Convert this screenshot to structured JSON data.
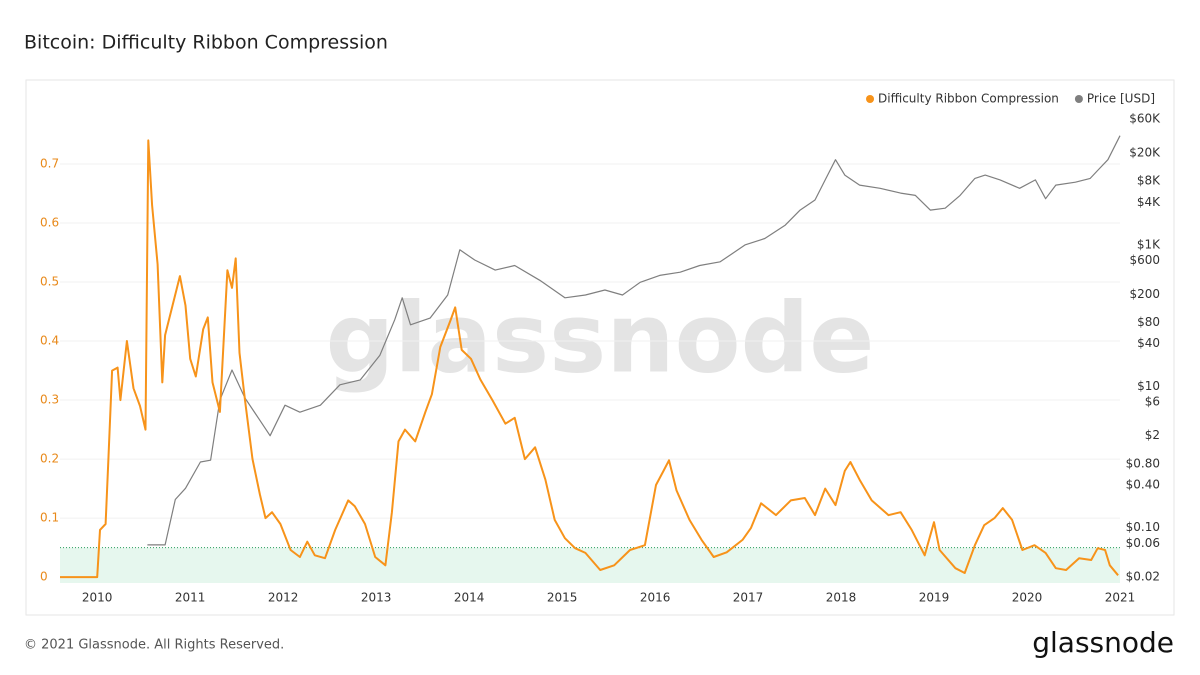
{
  "chart_data": {
    "type": "line",
    "title": "Bitcoin: Difficulty Ribbon Compression",
    "watermark": "glassnode",
    "footer": "© 2021 Glassnode. All Rights Reserved.",
    "brand": "glassnode",
    "legend": "top-right",
    "grid": true,
    "threshold": 0.05,
    "threshold_color": "#e6f7ee",
    "xlim": [
      2009.6,
      2021.0
    ],
    "xticks": [
      2010,
      2011,
      2012,
      2013,
      2014,
      2015,
      2016,
      2017,
      2018,
      2019,
      2020,
      2021
    ],
    "ylim": [
      -0.01,
      0.8
    ],
    "yticks": [
      0,
      0.1,
      0.2,
      0.3,
      0.4,
      0.5,
      0.6,
      0.7
    ],
    "y2log": true,
    "y2lim": [
      0.0165,
      95000
    ],
    "y2ticks": [
      {
        "value": 0.02,
        "label": "$0.02"
      },
      {
        "value": 0.06,
        "label": "$0.06"
      },
      {
        "value": 0.1,
        "label": "$0.10"
      },
      {
        "value": 0.4,
        "label": "$0.40"
      },
      {
        "value": 0.8,
        "label": "$0.80"
      },
      {
        "value": 2,
        "label": "$2"
      },
      {
        "value": 6,
        "label": "$6"
      },
      {
        "value": 10,
        "label": "$10"
      },
      {
        "value": 40,
        "label": "$40"
      },
      {
        "value": 80,
        "label": "$80"
      },
      {
        "value": 200,
        "label": "$200"
      },
      {
        "value": 600,
        "label": "$600"
      },
      {
        "value": 1000,
        "label": "$1K"
      },
      {
        "value": 4000,
        "label": "$4K"
      },
      {
        "value": 8000,
        "label": "$8K"
      },
      {
        "value": 20000,
        "label": "$20K"
      },
      {
        "value": 60000,
        "label": "$60K"
      }
    ],
    "series": [
      {
        "name": "Difficulty Ribbon Compression",
        "color": "#f7931a",
        "axis": "y",
        "x": [
          2009.6,
          2010.0,
          2010.03,
          2010.09,
          2010.12,
          2010.16,
          2010.22,
          2010.25,
          2010.32,
          2010.39,
          2010.46,
          2010.52,
          2010.55,
          2010.59,
          2010.65,
          2010.7,
          2010.73,
          2010.81,
          2010.89,
          2010.95,
          2011.0,
          2011.06,
          2011.14,
          2011.19,
          2011.24,
          2011.32,
          2011.4,
          2011.45,
          2011.49,
          2011.53,
          2011.59,
          2011.67,
          2011.75,
          2011.81,
          2011.88,
          2011.97,
          2012.08,
          2012.18,
          2012.26,
          2012.34,
          2012.45,
          2012.56,
          2012.7,
          2012.77,
          2012.88,
          2012.99,
          2013.1,
          2013.17,
          2013.24,
          2013.31,
          2013.42,
          2013.53,
          2013.6,
          2013.69,
          2013.8,
          2013.85,
          2013.92,
          2014.02,
          2014.12,
          2014.25,
          2014.39,
          2014.49,
          2014.6,
          2014.71,
          2014.82,
          2014.92,
          2015.03,
          2015.14,
          2015.25,
          2015.41,
          2015.56,
          2015.73,
          2015.89,
          2016.01,
          2016.09,
          2016.15,
          2016.23,
          2016.37,
          2016.5,
          2016.63,
          2016.77,
          2016.94,
          2017.03,
          2017.14,
          2017.3,
          2017.46,
          2017.61,
          2017.72,
          2017.83,
          2017.94,
          2018.04,
          2018.1,
          2018.2,
          2018.33,
          2018.51,
          2018.64,
          2018.76,
          2018.9,
          2019.0,
          2019.06,
          2019.23,
          2019.33,
          2019.44,
          2019.54,
          2019.65,
          2019.74,
          2019.84,
          2019.95,
          2020.08,
          2020.2,
          2020.31,
          2020.42,
          2020.56,
          2020.69,
          2020.76,
          2020.84,
          2020.89,
          2020.98
        ],
        "values": [
          0,
          0,
          0.08,
          0.09,
          0.2,
          0.35,
          0.355,
          0.3,
          0.4,
          0.32,
          0.29,
          0.25,
          0.74,
          0.63,
          0.53,
          0.33,
          0.41,
          0.46,
          0.51,
          0.46,
          0.37,
          0.34,
          0.42,
          0.44,
          0.33,
          0.28,
          0.52,
          0.49,
          0.54,
          0.38,
          0.3,
          0.2,
          0.14,
          0.1,
          0.11,
          0.09,
          0.046,
          0.034,
          0.06,
          0.037,
          0.032,
          0.08,
          0.13,
          0.12,
          0.09,
          0.034,
          0.02,
          0.11,
          0.23,
          0.25,
          0.23,
          0.28,
          0.31,
          0.39,
          0.435,
          0.457,
          0.385,
          0.37,
          0.335,
          0.3,
          0.26,
          0.27,
          0.2,
          0.22,
          0.165,
          0.097,
          0.066,
          0.049,
          0.041,
          0.012,
          0.02,
          0.046,
          0.054,
          0.156,
          0.18,
          0.198,
          0.147,
          0.097,
          0.063,
          0.034,
          0.042,
          0.063,
          0.083,
          0.125,
          0.105,
          0.13,
          0.134,
          0.105,
          0.15,
          0.122,
          0.18,
          0.195,
          0.165,
          0.13,
          0.105,
          0.11,
          0.08,
          0.037,
          0.093,
          0.046,
          0.015,
          0.007,
          0.054,
          0.088,
          0.1,
          0.117,
          0.097,
          0.046,
          0.054,
          0.041,
          0.015,
          0.012,
          0.032,
          0.029,
          0.049,
          0.046,
          0.02,
          0.003
        ]
      },
      {
        "name": "Price [USD]",
        "color": "#7f7f7f",
        "axis": "y2",
        "x": [
          2010.54,
          2010.73,
          2010.84,
          2010.95,
          2011.11,
          2011.22,
          2011.32,
          2011.45,
          2011.59,
          2011.75,
          2011.86,
          2012.02,
          2012.18,
          2012.4,
          2012.61,
          2012.83,
          2013.04,
          2013.2,
          2013.28,
          2013.37,
          2013.58,
          2013.77,
          2013.9,
          2014.06,
          2014.28,
          2014.49,
          2014.76,
          2015.03,
          2015.25,
          2015.46,
          2015.65,
          2015.84,
          2016.05,
          2016.27,
          2016.48,
          2016.7,
          2016.97,
          2017.18,
          2017.4,
          2017.56,
          2017.72,
          2017.83,
          2017.94,
          2018.04,
          2018.2,
          2018.42,
          2018.64,
          2018.8,
          2018.96,
          2019.12,
          2019.28,
          2019.44,
          2019.55,
          2019.71,
          2019.92,
          2020.09,
          2020.2,
          2020.31,
          2020.52,
          2020.68,
          2020.78,
          2020.87,
          2020.95,
          2021.0
        ],
        "values": [
          0.057,
          0.057,
          0.25,
          0.36,
          0.85,
          0.9,
          6.4,
          17,
          6.8,
          3.3,
          2.0,
          5.4,
          4.3,
          5.4,
          10.5,
          12.3,
          27.5,
          87,
          178,
          74,
          92,
          195,
          850,
          610,
          440,
          510,
          315,
          178,
          195,
          230,
          195,
          295,
          370,
          410,
          510,
          575,
          1000,
          1230,
          1900,
          3100,
          4300,
          8300,
          16000,
          9700,
          7000,
          6300,
          5400,
          5000,
          3100,
          3300,
          5000,
          8700,
          9700,
          8300,
          6300,
          8300,
          4500,
          7000,
          7700,
          8700,
          12000,
          16000,
          26000,
          35000
        ]
      }
    ]
  }
}
